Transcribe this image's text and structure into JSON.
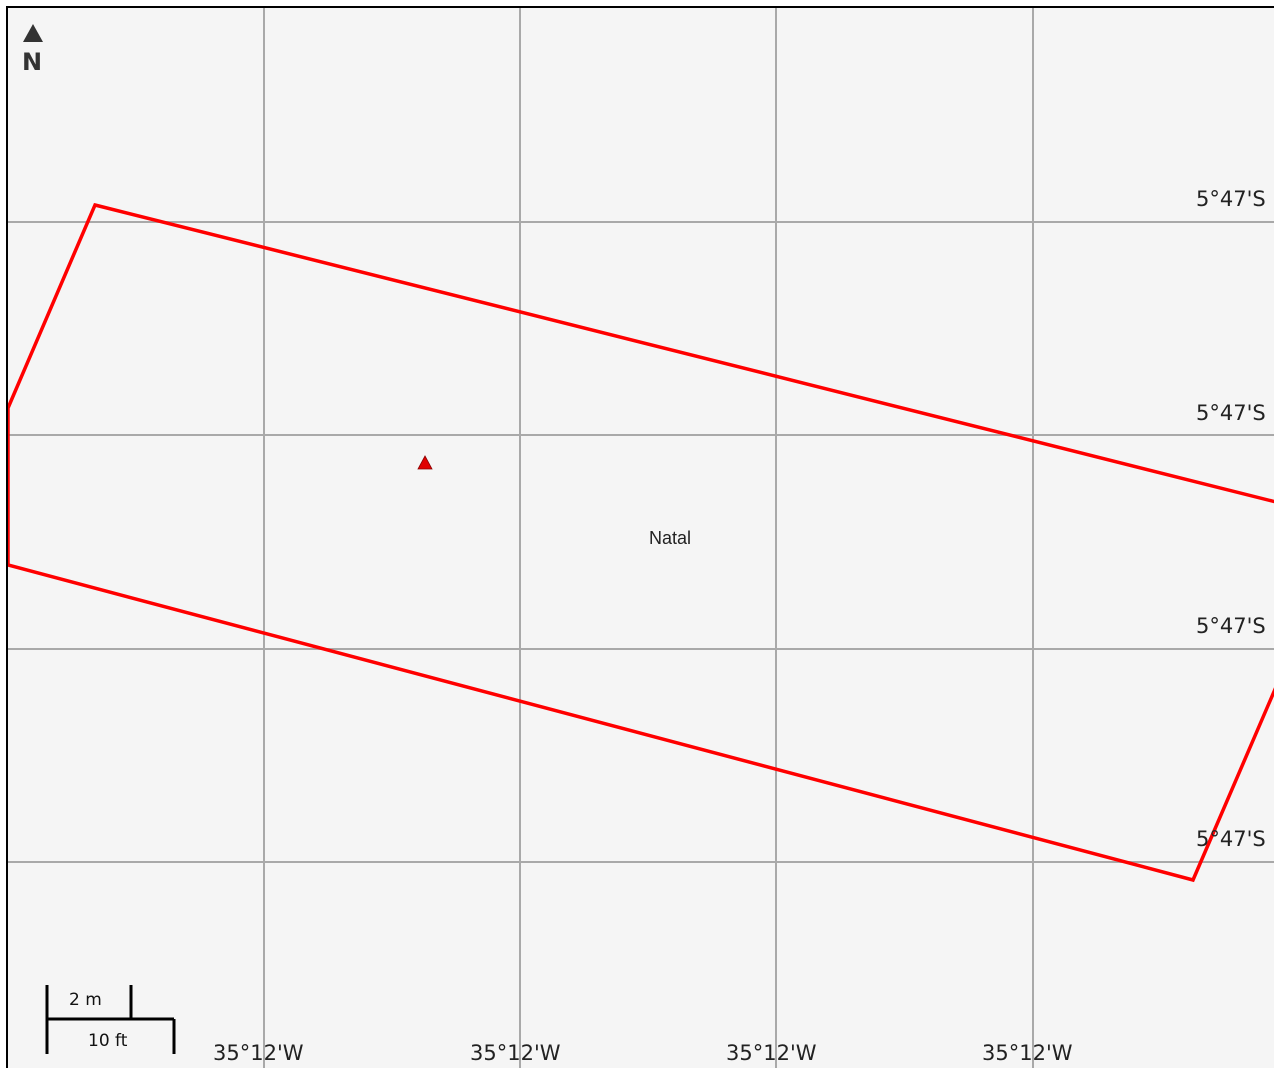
{
  "map": {
    "place_name": "Natal",
    "north_arrow": {
      "icon": "north-arrow-icon",
      "label": "N"
    },
    "latitude_labels": [
      "5°47'S",
      "5°47'S",
      "5°47'S",
      "5°47'S"
    ],
    "longitude_labels": [
      "35°12'W",
      "35°12'W",
      "35°12'W",
      "35°12'W"
    ],
    "scale_bar": {
      "metric_label": "2 m",
      "imperial_label": "10 ft"
    },
    "colors": {
      "background": "#f5f5f5",
      "grid": "#a9a9a9",
      "boundary": "#ff0000",
      "marker": "#e00000"
    },
    "marker": {
      "icon": "red-triangle-marker-icon"
    }
  }
}
